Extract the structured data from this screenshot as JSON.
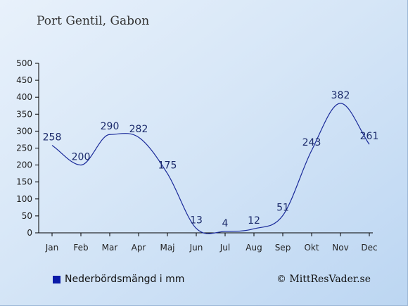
{
  "title": "Port Gentil, Gabon",
  "legend": {
    "label": "Nederbördsmängd i mm",
    "color": "#0a1aa8"
  },
  "credit": "© MittResVader.se",
  "colors": {
    "line": "#1a2a9a",
    "axis": "#000000",
    "label": "#1b2a6b"
  },
  "chart_data": {
    "type": "line",
    "categories": [
      "Jan",
      "Feb",
      "Mar",
      "Apr",
      "Maj",
      "Jun",
      "Jul",
      "Aug",
      "Sep",
      "Okt",
      "Nov",
      "Dec"
    ],
    "series": [
      {
        "name": "Nederbördsmängd i mm",
        "values": [
          258,
          200,
          290,
          282,
          175,
          13,
          4,
          12,
          51,
          243,
          382,
          261
        ]
      }
    ],
    "data_labels": [
      "258",
      "200",
      "290",
      "282",
      "175",
      "13",
      "4",
      "12",
      "51",
      "243",
      "382",
      "261"
    ],
    "ylim": [
      0,
      500
    ],
    "yticks": [
      0,
      50,
      100,
      150,
      200,
      250,
      300,
      350,
      400,
      450,
      500
    ],
    "grid": false,
    "xlabel": "",
    "ylabel": ""
  }
}
